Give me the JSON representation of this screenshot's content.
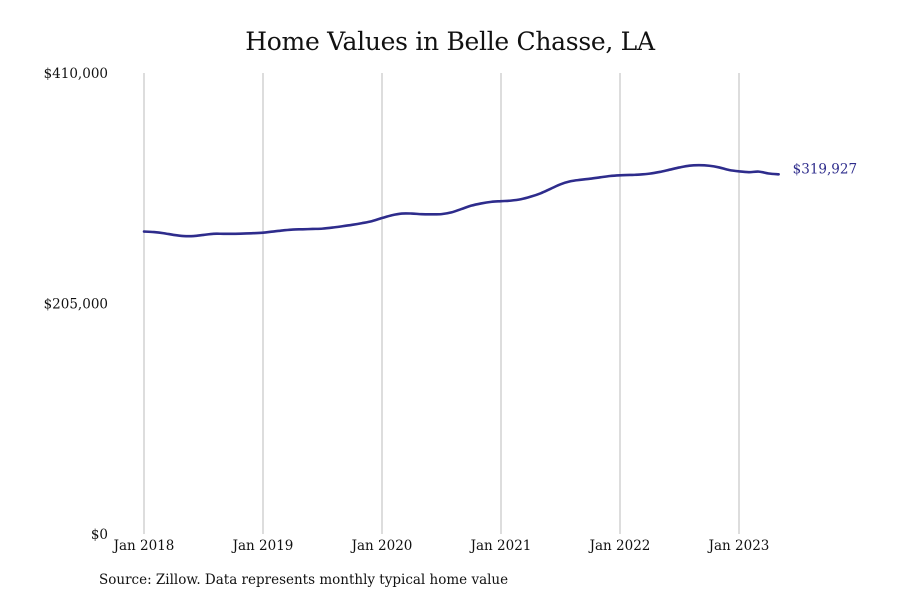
{
  "title": "Home Values in Belle Chasse, LA",
  "source": "Source: Zillow. Data represents monthly typical home value",
  "colors": {
    "line": "#2e2c8c",
    "grid": "#bbbbbb",
    "text": "#111111"
  },
  "chart_data": {
    "type": "line",
    "title": "Home Values in Belle Chasse, LA",
    "xlabel": "",
    "ylabel": "",
    "xlim": [
      "2018-01",
      "2023-05"
    ],
    "ylim": [
      0,
      410000
    ],
    "y_ticks": [
      0,
      205000,
      410000
    ],
    "y_tick_labels": [
      "$0",
      "$205,000",
      "$410,000"
    ],
    "x_ticks": [
      "2018-01",
      "2019-01",
      "2020-01",
      "2021-01",
      "2022-01",
      "2023-01"
    ],
    "x_tick_labels": [
      "Jan 2018",
      "Jan 2019",
      "Jan 2020",
      "Jan 2021",
      "Jan 2022",
      "Jan 2023"
    ],
    "grid": "vertical",
    "end_label": "$319,927",
    "series": [
      {
        "x": [
          "2018-01",
          "2018-02",
          "2018-03",
          "2018-04",
          "2018-05",
          "2018-06",
          "2018-07",
          "2018-08",
          "2018-09",
          "2018-10",
          "2018-11",
          "2018-12",
          "2019-01",
          "2019-02",
          "2019-03",
          "2019-04",
          "2019-05",
          "2019-06",
          "2019-07",
          "2019-08",
          "2019-09",
          "2019-10",
          "2019-11",
          "2019-12",
          "2020-01",
          "2020-02",
          "2020-03",
          "2020-04",
          "2020-05",
          "2020-06",
          "2020-07",
          "2020-08",
          "2020-09",
          "2020-10",
          "2020-11",
          "2020-12",
          "2021-01",
          "2021-02",
          "2021-03",
          "2021-04",
          "2021-05",
          "2021-06",
          "2021-07",
          "2021-08",
          "2021-09",
          "2021-10",
          "2021-11",
          "2021-12",
          "2022-01",
          "2022-02",
          "2022-03",
          "2022-04",
          "2022-05",
          "2022-06",
          "2022-07",
          "2022-08",
          "2022-09",
          "2022-10",
          "2022-11",
          "2022-12",
          "2023-01",
          "2023-02",
          "2023-03",
          "2023-04",
          "2023-05"
        ],
        "values": [
          269000,
          268500,
          267500,
          266000,
          265000,
          265000,
          266000,
          267000,
          267000,
          267000,
          267200,
          267500,
          268000,
          269000,
          270000,
          270800,
          271000,
          271300,
          271600,
          272500,
          273700,
          275000,
          276500,
          278300,
          281000,
          283500,
          285000,
          285000,
          284400,
          284300,
          284500,
          286000,
          289000,
          292000,
          294000,
          295400,
          296000,
          296500,
          297700,
          300000,
          303000,
          307000,
          311000,
          313700,
          315000,
          316000,
          317200,
          318400,
          319000,
          319300,
          319700,
          320500,
          322000,
          324000,
          326000,
          327600,
          328000,
          327500,
          326000,
          323700,
          322500,
          321800,
          322300,
          320600,
          319927
        ]
      }
    ]
  }
}
